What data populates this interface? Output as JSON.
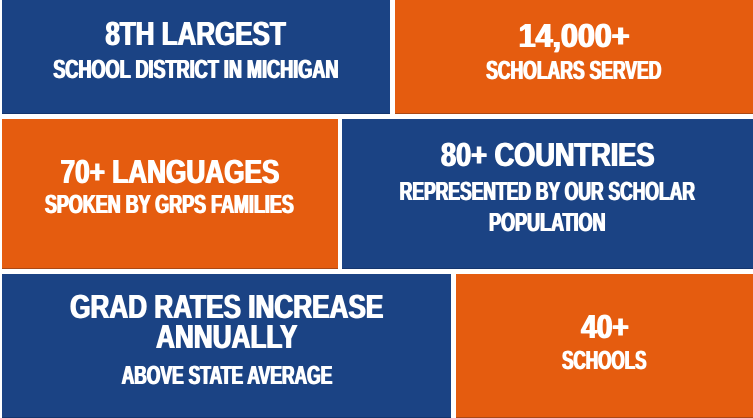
{
  "page": {
    "description": "School district statistics infographic",
    "background_color": "#ffffff"
  },
  "colors": {
    "navy_blue": "#1b4384",
    "orange": "#e55c0f",
    "text_white": "#ffffff"
  },
  "tiles": [
    {
      "name": "district-size",
      "color": "navy_blue",
      "title": "8TH LARGEST",
      "title_lines": [
        "8TH LARGEST"
      ],
      "subtitle": "SCHOOL DISTRICT IN MICHIGAN",
      "subtitle_lines": [
        "SCHOOL DISTRICT IN MICHIGAN"
      ]
    },
    {
      "name": "scholars-served",
      "color": "orange",
      "title": "14,000+",
      "title_lines": [
        "14,000+"
      ],
      "subtitle": "SCHOLARS SERVED",
      "subtitle_lines": [
        "SCHOLARS SERVED"
      ]
    },
    {
      "name": "languages",
      "color": "orange",
      "title": "70+ LANGUAGES",
      "title_lines": [
        "70+ LANGUAGES"
      ],
      "subtitle": "SPOKEN BY GRPS FAMILIES",
      "subtitle_lines": [
        "SPOKEN BY GRPS FAMILIES"
      ]
    },
    {
      "name": "countries",
      "color": "navy_blue",
      "title": "80+ COUNTRIES",
      "title_lines": [
        "80+ COUNTRIES"
      ],
      "subtitle": "REPRESENTED BY OUR SCHOLAR POPULATION",
      "subtitle_lines": [
        "REPRESENTED BY OUR SCHOLAR",
        "POPULATION"
      ]
    },
    {
      "name": "grad-rates",
      "color": "navy_blue",
      "title": "GRAD RATES INCREASE ANNUALLY",
      "title_lines": [
        "GRAD RATES INCREASE",
        "ANNUALLY"
      ],
      "subtitle": "ABOVE STATE AVERAGE",
      "subtitle_lines": [
        "ABOVE STATE AVERAGE"
      ]
    },
    {
      "name": "schools",
      "color": "orange",
      "title": "40+",
      "title_lines": [
        "40+"
      ],
      "subtitle": "SCHOOLS",
      "subtitle_lines": [
        "SCHOOLS"
      ]
    }
  ]
}
